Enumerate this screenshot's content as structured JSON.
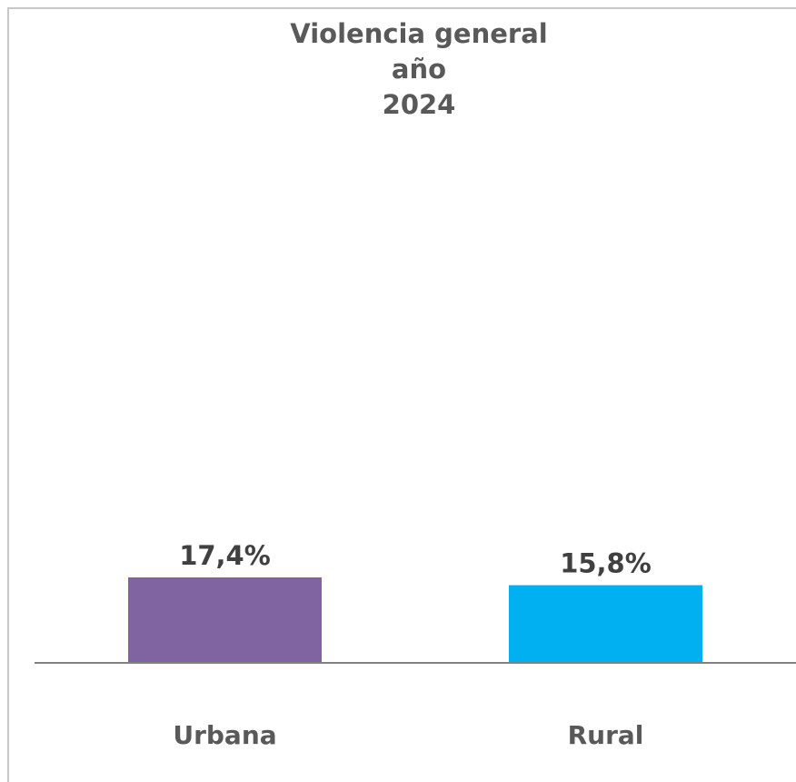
{
  "chart_data": {
    "type": "bar",
    "title_lines": [
      "Violencia general",
      "año",
      "2024"
    ],
    "categories": [
      "Urbana",
      "Rural"
    ],
    "values": [
      17.4,
      15.8
    ],
    "data_labels": [
      "17,4%",
      "15,8%"
    ],
    "colors": [
      "#8064a2",
      "#00b0f0"
    ],
    "xlabel": "",
    "ylabel": "",
    "ylim": [
      0,
      100
    ],
    "grid": false,
    "legend": "none",
    "axis_color": "#808080"
  }
}
